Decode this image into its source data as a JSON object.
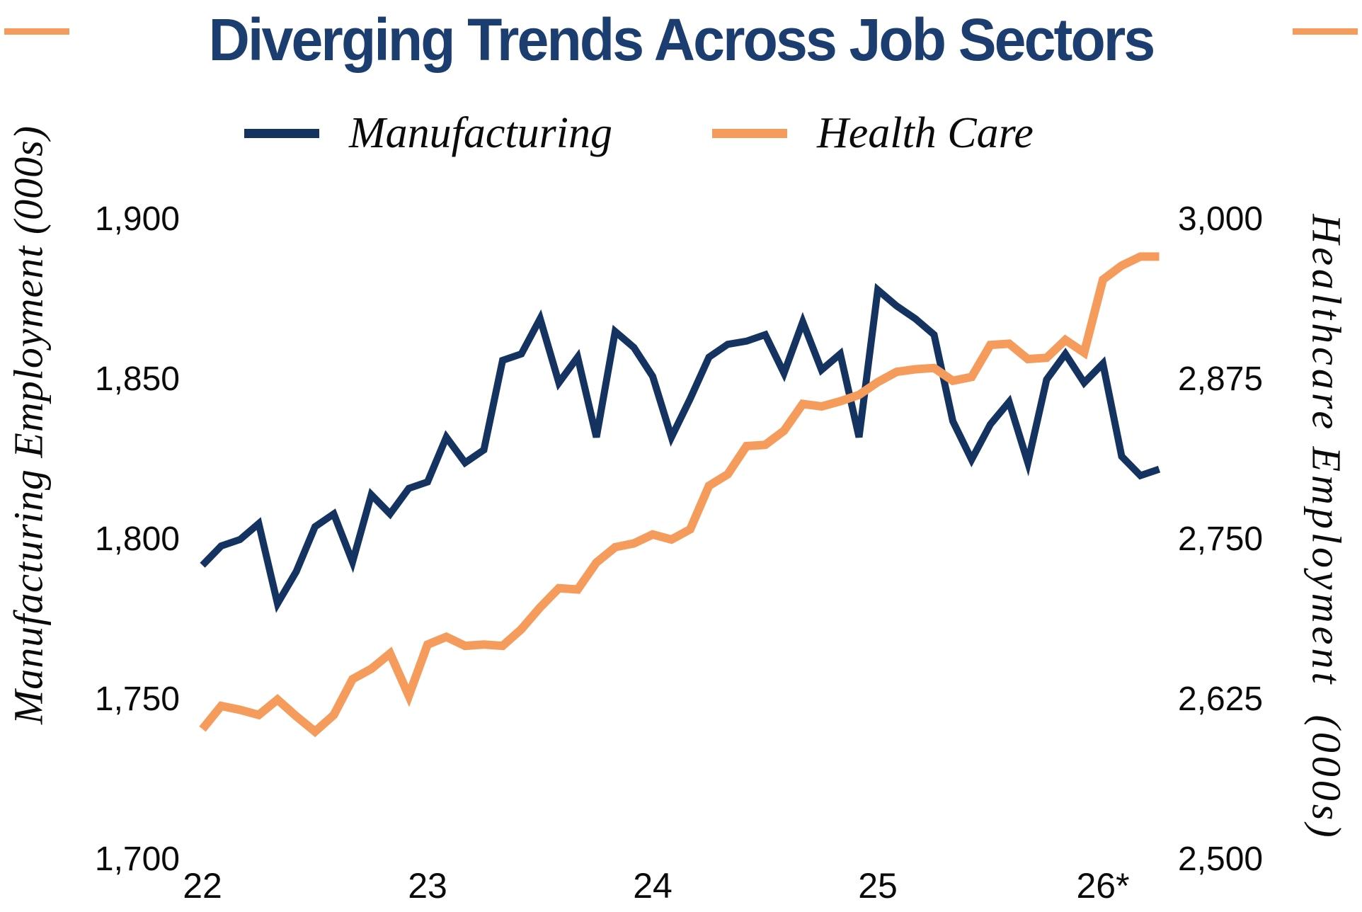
{
  "title": {
    "text": "Diverging Trends Across Job Sectors",
    "color": "#1c3d6f"
  },
  "decor": {
    "corner_dash_color": "#f59b5c"
  },
  "legend": {
    "items": [
      {
        "label": "Manufacturing",
        "color": "#143360"
      },
      {
        "label": "Health Care",
        "color": "#f59b5c"
      }
    ]
  },
  "left_axis": {
    "title": "Manufacturing Employment (000s)",
    "ticks": [
      {
        "label": "1,900",
        "value": 1900
      },
      {
        "label": "1,850",
        "value": 1850
      },
      {
        "label": "1,800",
        "value": 1800
      },
      {
        "label": "1,750",
        "value": 1750
      },
      {
        "label": "1,700",
        "value": 1700
      }
    ]
  },
  "right_axis": {
    "title": "Healthcare Employment  (000s)",
    "ticks": [
      {
        "label": "3,000",
        "value": 3000
      },
      {
        "label": "2,875",
        "value": 2875
      },
      {
        "label": "2,750",
        "value": 2750
      },
      {
        "label": "2,625",
        "value": 2625
      },
      {
        "label": "2,500",
        "value": 2500
      }
    ]
  },
  "x_axis": {
    "ticks": [
      {
        "label": "22",
        "month": 0
      },
      {
        "label": "23",
        "month": 12
      },
      {
        "label": "24",
        "month": 24
      },
      {
        "label": "25",
        "month": 36
      },
      {
        "label": "26*",
        "month": 48
      }
    ]
  },
  "chart_data": {
    "type": "line",
    "title": "Diverging Trends Across Job Sectors",
    "x_unit": "month",
    "x_note": "monthly values, Jan 2022 - Apr 2026; x tick marks January of each year; 26* indicates partly projected data",
    "grid": false,
    "legend_position": "top",
    "left_ylim": [
      1700,
      1900
    ],
    "right_ylim": [
      2500,
      3000
    ],
    "series": [
      {
        "name": "Manufacturing",
        "axis": "left",
        "color": "#143360",
        "stroke_width": 10,
        "values": [
          1792,
          1798,
          1800,
          1805,
          1780,
          1790,
          1804,
          1808,
          1793,
          1814,
          1808,
          1816,
          1818,
          1832,
          1824,
          1828,
          1856,
          1858,
          1869,
          1849,
          1857,
          1832,
          1865,
          1860,
          1851,
          1832,
          1844,
          1857,
          1861,
          1862,
          1864,
          1852,
          1868,
          1853,
          1858,
          1832,
          1878,
          1873,
          1869,
          1864,
          1837,
          1825,
          1836,
          1843,
          1824,
          1850,
          1858,
          1849,
          1855,
          1826,
          1820,
          1822
        ]
      },
      {
        "name": "Health Care",
        "axis": "right",
        "color": "#f59b5c",
        "stroke_width": 12,
        "values": [
          2602,
          2620,
          2617,
          2613,
          2625,
          2612,
          2600,
          2613,
          2641,
          2649,
          2661,
          2628,
          2668,
          2674,
          2667,
          2668,
          2667,
          2680,
          2697,
          2712,
          2711,
          2732,
          2744,
          2747,
          2754,
          2750,
          2758,
          2792,
          2801,
          2823,
          2824,
          2835,
          2856,
          2854,
          2858,
          2863,
          2873,
          2881,
          2883,
          2884,
          2874,
          2877,
          2902,
          2903,
          2891,
          2892,
          2906,
          2896,
          2953,
          2964,
          2971,
          2971
        ]
      }
    ]
  }
}
